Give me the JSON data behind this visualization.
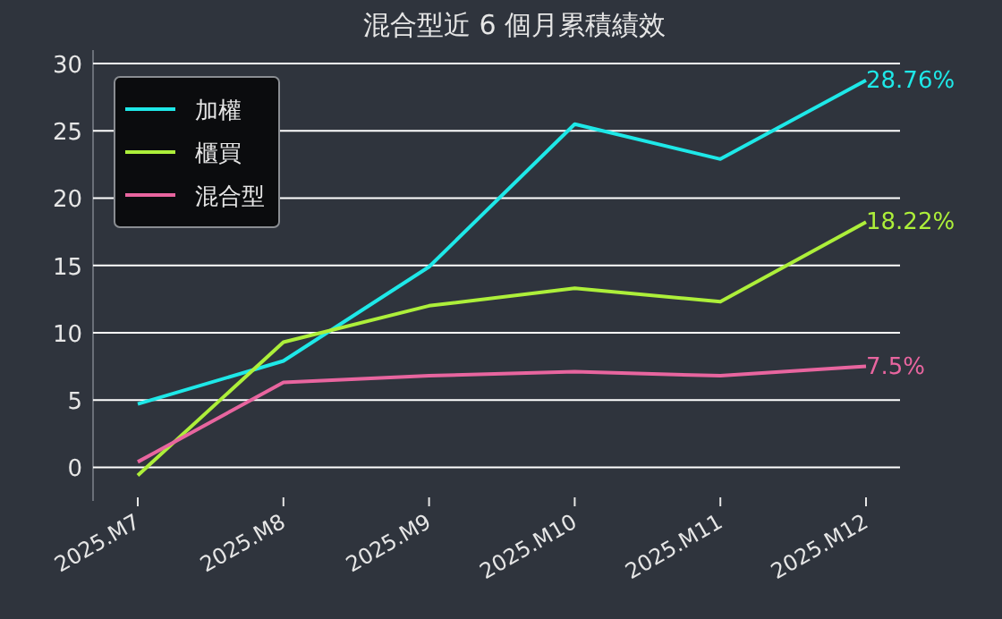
{
  "chart_data": {
    "type": "line",
    "title": "混合型近 6 個月累積績效",
    "categories": [
      "2025.M7",
      "2025.M8",
      "2025.M9",
      "2025.M10",
      "2025.M11",
      "2025.M12"
    ],
    "series": [
      {
        "name": "加權",
        "color": "#1ee8e8",
        "values": [
          4.7,
          7.9,
          14.9,
          25.5,
          22.9,
          28.76
        ],
        "value_labels": [
          null,
          null,
          null,
          null,
          null,
          "28.76%"
        ]
      },
      {
        "name": "櫃買",
        "color": "#adef3a",
        "values": [
          -0.6,
          9.3,
          12.0,
          13.3,
          12.3,
          18.22
        ],
        "value_labels": [
          null,
          null,
          null,
          null,
          null,
          "18.22%"
        ]
      },
      {
        "name": "混合型",
        "color": "#e8659f",
        "values": [
          0.4,
          6.3,
          6.8,
          7.1,
          6.8,
          7.5
        ],
        "value_labels": [
          null,
          null,
          null,
          null,
          null,
          "7.5%"
        ]
      }
    ],
    "ylim": [
      -2.5,
      31
    ],
    "yticks": [
      0,
      5,
      10,
      15,
      20,
      25,
      30
    ],
    "grid": "y",
    "legend": "top left"
  }
}
